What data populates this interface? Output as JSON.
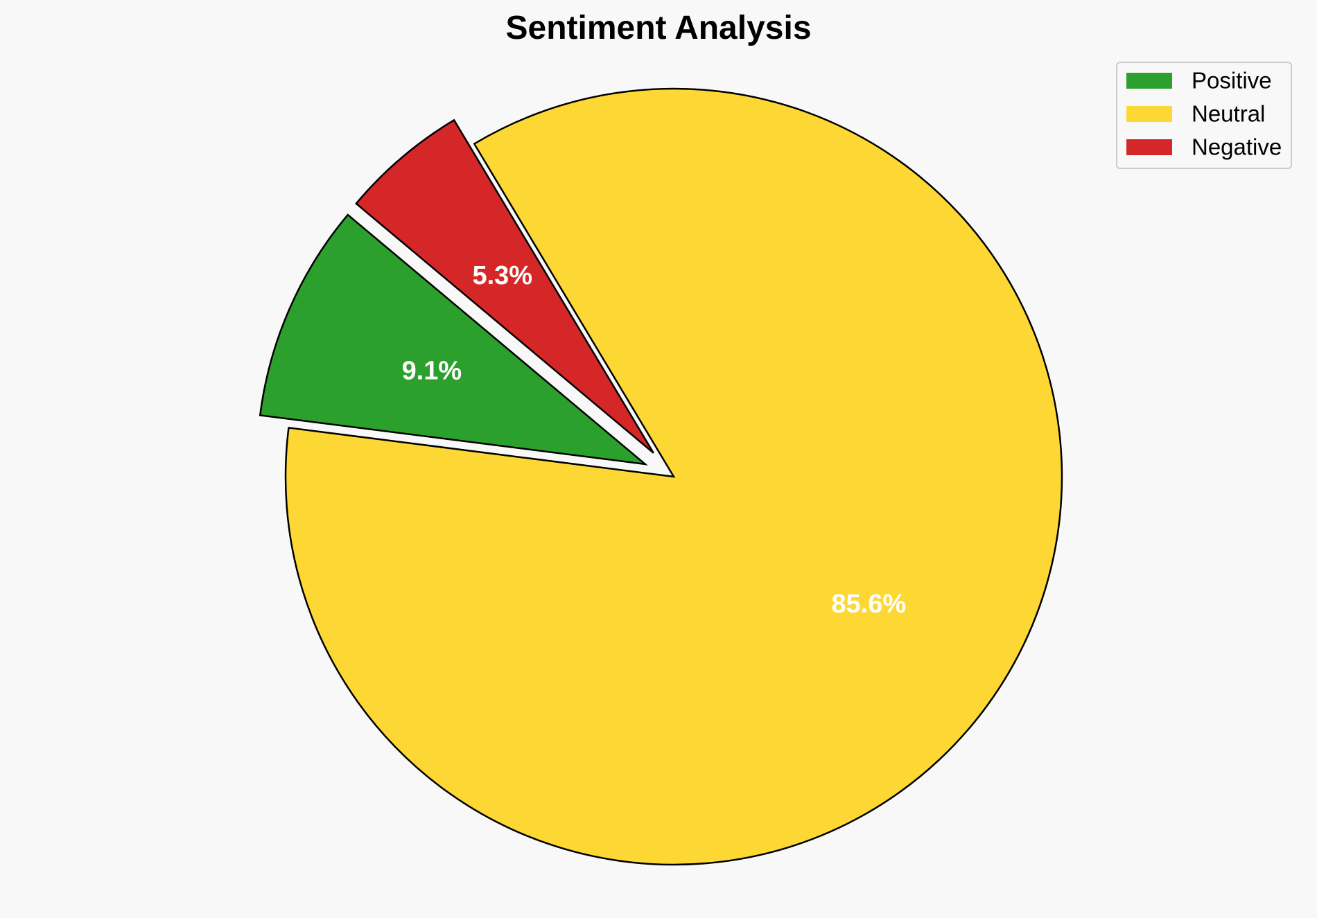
{
  "chart_data": {
    "type": "pie",
    "title": "Sentiment Analysis",
    "categories": [
      "Positive",
      "Neutral",
      "Negative"
    ],
    "values": [
      9.1,
      85.6,
      5.3
    ],
    "labels": [
      "9.1%",
      "85.6%",
      "5.3%"
    ],
    "colors": [
      "#2ca02c",
      "#fdd835",
      "#d62728"
    ],
    "exploded": [
      true,
      false,
      true
    ],
    "legend": {
      "placement": "top-right",
      "entries": [
        "Positive",
        "Neutral",
        "Negative"
      ]
    }
  }
}
